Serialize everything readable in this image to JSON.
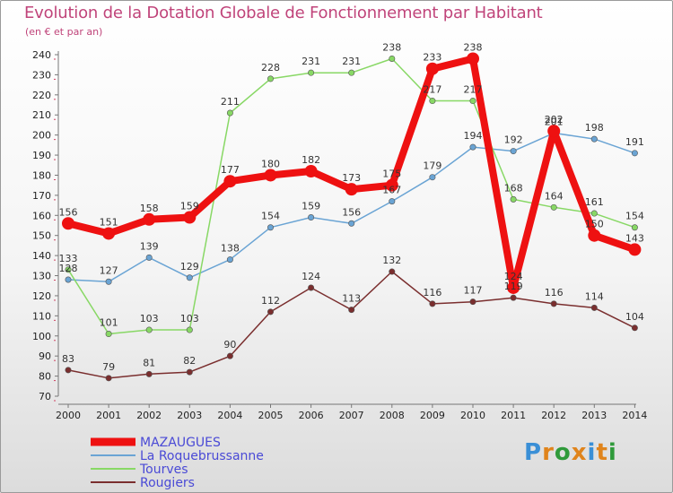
{
  "title": "Evolution de la Dotation Globale de Fonctionnement par Habitant",
  "subtitle": "(en € et par an)",
  "logo": {
    "letters": [
      "P",
      "r",
      "o",
      "x",
      "i",
      "t",
      "i"
    ],
    "colors": [
      "#3a8fd6",
      "#e0841c",
      "#2f9a3a",
      "#e0841c",
      "#3a8fd6",
      "#e0841c",
      "#2f9a3a"
    ]
  },
  "chart_data": {
    "type": "line",
    "title": "Evolution de la Dotation Globale de Fonctionnement par Habitant",
    "ylabel": "(en € et par an)",
    "xlabel": "",
    "x": [
      "2000",
      "2001",
      "2002",
      "2003",
      "2004",
      "2005",
      "2006",
      "2007",
      "2008",
      "2009",
      "2010",
      "2011",
      "2012",
      "2013",
      "2014"
    ],
    "ylim": [
      70,
      240
    ],
    "yticks": [
      70,
      80,
      90,
      100,
      110,
      120,
      130,
      140,
      150,
      160,
      170,
      180,
      190,
      200,
      210,
      220,
      230,
      240
    ],
    "grid": false,
    "legend_position": "bottom-left",
    "series": [
      {
        "name": "MAZAUGUES",
        "color": "#ee1111",
        "emphasis": true,
        "values": [
          156,
          151,
          158,
          159,
          177,
          180,
          182,
          173,
          175,
          233,
          238,
          124,
          202,
          150,
          143
        ]
      },
      {
        "name": "La Roquebrussanne",
        "color": "#6aa4d4",
        "values": [
          128,
          127,
          139,
          129,
          138,
          154,
          159,
          156,
          167,
          179,
          194,
          192,
          201,
          198,
          191
        ]
      },
      {
        "name": "Tourves",
        "color": "#88d865",
        "values": [
          133,
          101,
          103,
          103,
          211,
          228,
          231,
          231,
          238,
          217,
          217,
          168,
          164,
          161,
          154
        ]
      },
      {
        "name": "Rougiers",
        "color": "#7a2e2e",
        "values": [
          83,
          79,
          81,
          82,
          90,
          112,
          124,
          113,
          132,
          116,
          117,
          119,
          116,
          114,
          104
        ]
      }
    ],
    "data_labels": {
      "MAZAUGUES": [
        "156",
        "151",
        "158",
        "159",
        "177",
        "180",
        "182",
        "173",
        "175",
        "233",
        "238",
        "124",
        "202",
        "150",
        "143"
      ],
      "La Roquebrussanne": [
        "128",
        "127",
        "139",
        "129",
        "138",
        "154",
        "159",
        "156",
        "167",
        "179",
        "194",
        "192",
        "201",
        "198",
        "191"
      ],
      "Tourves": [
        "133",
        "101",
        "103",
        "103",
        "211",
        "228",
        "231",
        "231",
        "238",
        "217",
        "217",
        "168",
        "164",
        "161",
        "154"
      ],
      "Rougiers": [
        "83",
        "79",
        "81",
        "82",
        "90",
        "112",
        "124",
        "113",
        "132",
        "116",
        "117",
        "119",
        "116",
        "114",
        "104"
      ]
    }
  }
}
